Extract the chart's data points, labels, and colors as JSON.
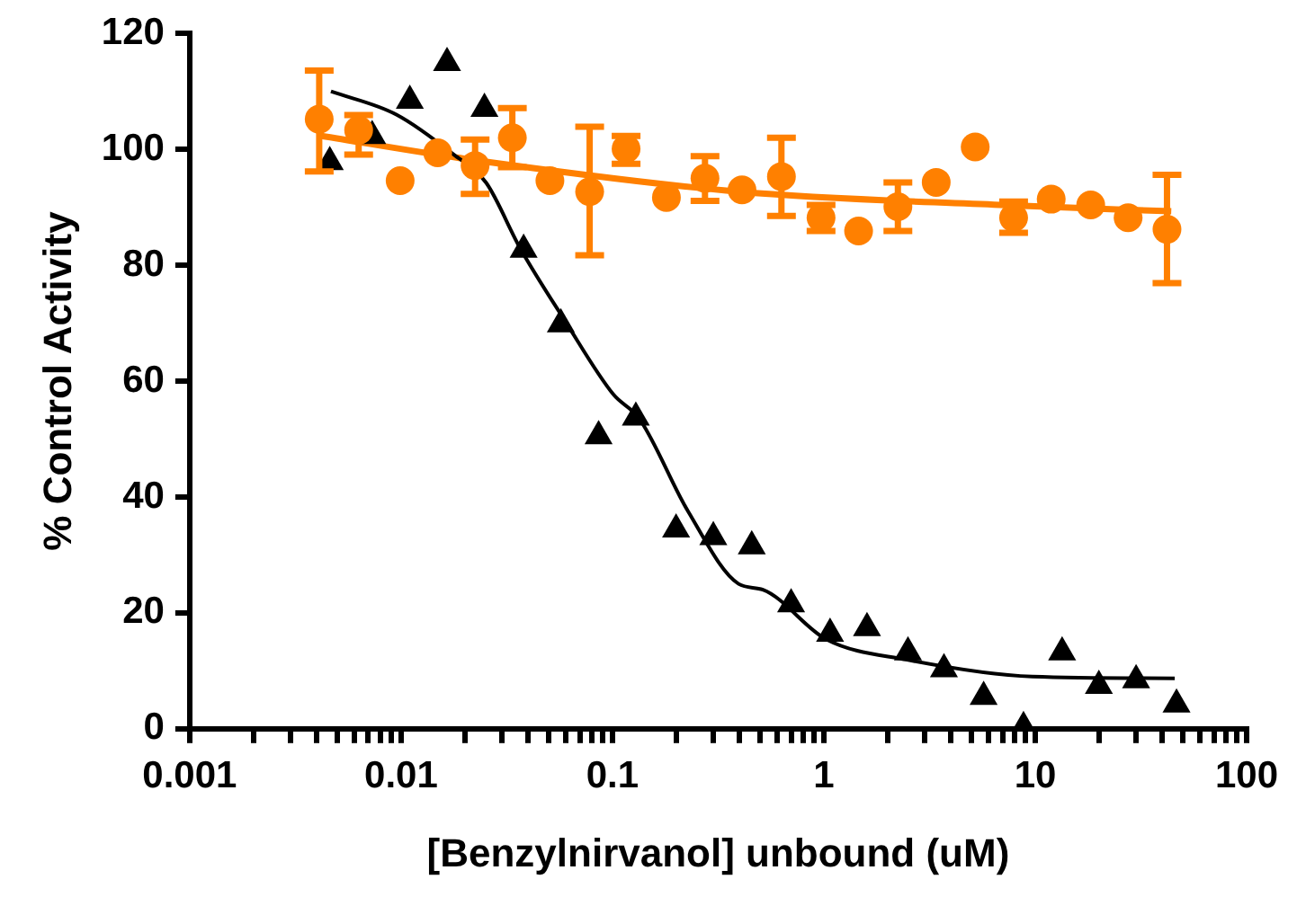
{
  "chart_data": {
    "type": "scatter",
    "xlabel": "[Benzylnirvanol] unbound (uM)",
    "ylabel": "% Control Activity",
    "log": "x",
    "xlim": [
      0.001,
      100
    ],
    "xticks": [
      0.001,
      {
        "value": 0.002,
        "label": null
      },
      {
        "value": 0.003,
        "label": null
      },
      {
        "value": 0.004,
        "label": null
      },
      {
        "value": 0.005,
        "label": null
      },
      {
        "value": 0.006,
        "label": null
      },
      {
        "value": 0.007,
        "label": null
      },
      {
        "value": 0.008,
        "label": null
      },
      {
        "value": 0.009,
        "label": null
      },
      0.01,
      {
        "value": 0.02,
        "label": null
      },
      {
        "value": 0.03,
        "label": null
      },
      {
        "value": 0.04,
        "label": null
      },
      {
        "value": 0.05,
        "label": null
      },
      {
        "value": 0.06,
        "label": null
      },
      {
        "value": 0.07,
        "label": null
      },
      {
        "value": 0.08,
        "label": null
      },
      {
        "value": 0.09,
        "label": null
      },
      0.1,
      {
        "value": 0.2,
        "label": null
      },
      {
        "value": 0.3,
        "label": null
      },
      {
        "value": 0.4,
        "label": null
      },
      {
        "value": 0.5,
        "label": null
      },
      {
        "value": 0.6,
        "label": null
      },
      {
        "value": 0.7,
        "label": null
      },
      {
        "value": 0.8,
        "label": null
      },
      {
        "value": 0.9,
        "label": null
      },
      1,
      {
        "value": 2,
        "label": null
      },
      {
        "value": 3,
        "label": null
      },
      {
        "value": 4,
        "label": null
      },
      {
        "value": 5,
        "label": null
      },
      {
        "value": 6,
        "label": null
      },
      {
        "value": 7,
        "label": null
      },
      {
        "value": 8,
        "label": null
      },
      {
        "value": 9,
        "label": null
      },
      10,
      {
        "value": 20,
        "label": null
      },
      {
        "value": 30,
        "label": null
      },
      {
        "value": 40,
        "label": null
      },
      {
        "value": 50,
        "label": null
      },
      {
        "value": 60,
        "label": null
      },
      {
        "value": 70,
        "label": null
      },
      {
        "value": 80,
        "label": null
      },
      {
        "value": 90,
        "label": null
      },
      100
    ],
    "ylim": [
      0,
      120
    ],
    "yticks": [
      0,
      20,
      40,
      60,
      80,
      100,
      120
    ],
    "grid": false,
    "legend": false,
    "series": [
      {
        "marker": "triangle",
        "color": "#000000",
        "x": [
          0.0046,
          0.0073,
          0.011,
          0.0165,
          0.0248,
          0.038,
          0.057,
          0.086,
          0.129,
          0.2,
          0.3,
          0.456,
          0.7,
          1.07,
          1.6,
          2.5,
          3.7,
          5.7,
          8.8,
          13.4,
          20,
          30,
          46.6
        ],
        "values": [
          97.8,
          102.3,
          108.4,
          114.9,
          107,
          82.7,
          69.8,
          50.5,
          53.7,
          34.4,
          33.1,
          31.5,
          21.5,
          16.4,
          17.4,
          13.2,
          10.3,
          5.5,
          0.3,
          13.2,
          7.4,
          8.4,
          4.2
        ]
      },
      {
        "type": "line",
        "marker": "none",
        "color": "#000000",
        "x": [
          0.00466,
          0.0095,
          0.0179,
          0.0253,
          0.0365,
          0.0594,
          0.101,
          0.134,
          0.228,
          0.395,
          0.515,
          1.03,
          2.48,
          9.7,
          45.7
        ],
        "values": [
          110,
          106,
          99,
          94.2,
          83,
          70.5,
          57.7,
          53.5,
          37.5,
          25,
          24,
          15.4,
          11.9,
          9,
          8.7
        ]
      },
      {
        "marker": "circle",
        "color": "#ff8000",
        "x": [
          0.0041,
          0.0063,
          0.0099,
          0.0149,
          0.0224,
          0.0336,
          0.0506,
          0.078,
          0.116,
          0.18,
          0.274,
          0.41,
          0.63,
          0.97,
          1.46,
          2.24,
          3.4,
          5.2,
          7.9,
          11.9,
          18.3,
          27.5,
          42
        ],
        "values": [
          105.2,
          103.3,
          94.6,
          99.4,
          97.2,
          102,
          94.6,
          92.7,
          100.1,
          91.7,
          95,
          93,
          95.3,
          88.2,
          85.9,
          90.1,
          94.3,
          100.4,
          88.2,
          91.4,
          90.4,
          88.2,
          86.2
        ],
        "errors": [
          [
            96.2,
            113.6
          ],
          [
            99.1,
            105.9
          ],
          null,
          null,
          [
            92.3,
            101.7
          ],
          [
            96.9,
            107.1
          ],
          null,
          [
            81.7,
            103.9
          ],
          [
            97.5,
            102.3
          ],
          null,
          [
            91.1,
            98.8
          ],
          null,
          [
            88.5,
            102
          ],
          [
            85.9,
            90.4
          ],
          null,
          [
            85.9,
            94.3
          ],
          null,
          null,
          [
            85.6,
            91
          ],
          null,
          null,
          null,
          [
            76.9,
            95.6
          ]
        ]
      },
      {
        "type": "line",
        "marker": "none",
        "color": "#ff8000",
        "x": [
          0.0042,
          0.0198,
          0.395,
          6.8,
          44
        ],
        "values": [
          102.3,
          98.4,
          92.7,
          90.4,
          89.3
        ]
      }
    ]
  }
}
